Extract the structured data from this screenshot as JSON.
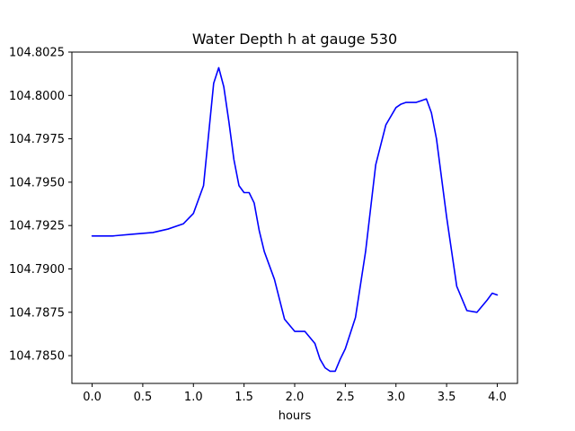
{
  "chart_data": {
    "type": "line",
    "title": "Water Depth h at gauge 530",
    "xlabel": "hours",
    "ylabel": "",
    "xlim": [
      -0.2,
      4.2
    ],
    "ylim": [
      104.7834,
      104.8025
    ],
    "xticks": [
      0.0,
      0.5,
      1.0,
      1.5,
      2.0,
      2.5,
      3.0,
      3.5,
      4.0
    ],
    "xtick_labels": [
      "0.0",
      "0.5",
      "1.0",
      "1.5",
      "2.0",
      "2.5",
      "3.0",
      "3.5",
      "4.0"
    ],
    "yticks": [
      104.785,
      104.7875,
      104.79,
      104.7925,
      104.795,
      104.7975,
      104.8,
      104.8025
    ],
    "ytick_labels": [
      "104.7850",
      "104.7875",
      "104.7900",
      "104.7925",
      "104.7950",
      "104.7975",
      "104.8000",
      "104.8025"
    ],
    "grid": false,
    "series": [
      {
        "color": "#0000ff",
        "x": [
          0.0,
          0.2,
          0.4,
          0.6,
          0.75,
          0.9,
          1.0,
          1.1,
          1.2,
          1.25,
          1.3,
          1.35,
          1.4,
          1.45,
          1.5,
          1.55,
          1.6,
          1.65,
          1.7,
          1.8,
          1.9,
          2.0,
          2.1,
          2.2,
          2.25,
          2.3,
          2.35,
          2.4,
          2.45,
          2.5,
          2.6,
          2.7,
          2.8,
          2.9,
          3.0,
          3.05,
          3.1,
          3.2,
          3.25,
          3.3,
          3.35,
          3.4,
          3.5,
          3.6,
          3.7,
          3.8,
          3.9,
          3.95,
          4.0
        ],
        "y": [
          104.7919,
          104.7919,
          104.792,
          104.7921,
          104.7923,
          104.7926,
          104.7932,
          104.7948,
          104.8007,
          104.8016,
          104.8005,
          104.7985,
          104.7963,
          104.7948,
          104.7944,
          104.7944,
          104.7938,
          104.7922,
          104.791,
          104.7894,
          104.7871,
          104.7864,
          104.7864,
          104.7857,
          104.7848,
          104.7843,
          104.7841,
          104.7841,
          104.7848,
          104.7854,
          104.7872,
          104.791,
          104.796,
          104.7983,
          104.7993,
          104.7995,
          104.7996,
          104.7996,
          104.7997,
          104.7998,
          104.799,
          104.7975,
          104.793,
          104.789,
          104.7876,
          104.7875,
          104.7882,
          104.7886,
          104.7885
        ]
      }
    ]
  }
}
